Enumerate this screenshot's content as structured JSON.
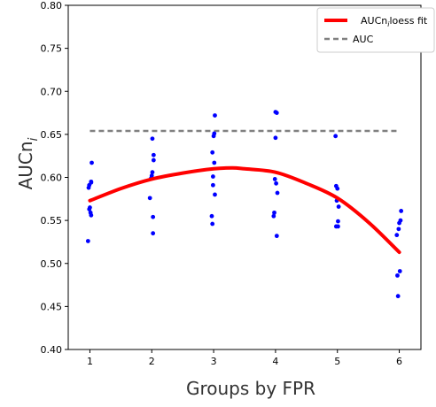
{
  "chart_data": {
    "type": "scatter",
    "xlabel": "Groups by FPR",
    "ylabel_main": "AUCn",
    "ylabel_sub": "i",
    "xlim": [
      0.65,
      6.35
    ],
    "ylim": [
      0.4,
      0.8
    ],
    "x_ticks": [
      1,
      2,
      3,
      4,
      5,
      6
    ],
    "x_tick_labels": [
      "1",
      "2",
      "3",
      "4",
      "5",
      "6"
    ],
    "y_ticks": [
      0.4,
      0.45,
      0.5,
      0.55,
      0.6,
      0.65,
      0.7,
      0.75,
      0.8
    ],
    "y_tick_labels": [
      "0.40",
      "0.45",
      "0.50",
      "0.55",
      "0.60",
      "0.65",
      "0.70",
      "0.75",
      "0.80"
    ],
    "grid": false,
    "legend_position": "top-right",
    "series": [
      {
        "name": "AUCn",
        "name_sub": "i",
        "name_suffix": "loess fit",
        "type": "line",
        "color": "#ff0000",
        "x": [
          1,
          1.5,
          2,
          2.5,
          3,
          3.3,
          3.5,
          4,
          4.5,
          5,
          5.5,
          6
        ],
        "y": [
          0.573,
          0.587,
          0.598,
          0.605,
          0.61,
          0.611,
          0.61,
          0.606,
          0.593,
          0.576,
          0.548,
          0.513
        ]
      },
      {
        "name": "AUC",
        "type": "hline",
        "color": "#808080",
        "y": 0.654,
        "x_range": [
          1,
          6
        ]
      },
      {
        "type": "scatter",
        "color": "#0000ff",
        "points": [
          [
            0.97,
            0.526
          ],
          [
            0.98,
            0.588
          ],
          [
            0.99,
            0.591
          ],
          [
            0.99,
            0.563
          ],
          [
            1.0,
            0.565
          ],
          [
            1.01,
            0.559
          ],
          [
            1.02,
            0.556
          ],
          [
            1.02,
            0.595
          ],
          [
            1.02,
            0.594
          ],
          [
            1.03,
            0.617
          ],
          [
            1.97,
            0.576
          ],
          [
            1.99,
            0.599
          ],
          [
            2.0,
            0.602
          ],
          [
            2.01,
            0.645
          ],
          [
            2.01,
            0.606
          ],
          [
            2.02,
            0.554
          ],
          [
            2.02,
            0.535
          ],
          [
            2.03,
            0.626
          ],
          [
            2.03,
            0.62
          ],
          [
            2.97,
            0.555
          ],
          [
            2.98,
            0.629
          ],
          [
            2.98,
            0.546
          ],
          [
            2.99,
            0.601
          ],
          [
            2.99,
            0.591
          ],
          [
            3.0,
            0.648
          ],
          [
            3.01,
            0.651
          ],
          [
            3.01,
            0.617
          ],
          [
            3.02,
            0.672
          ],
          [
            3.02,
            0.58
          ],
          [
            3.97,
            0.555
          ],
          [
            3.98,
            0.559
          ],
          [
            3.99,
            0.598
          ],
          [
            4.0,
            0.646
          ],
          [
            4.0,
            0.676
          ],
          [
            4.01,
            0.593
          ],
          [
            4.02,
            0.675
          ],
          [
            4.02,
            0.532
          ],
          [
            4.03,
            0.582
          ],
          [
            4.97,
            0.648
          ],
          [
            4.98,
            0.59
          ],
          [
            4.98,
            0.543
          ],
          [
            4.99,
            0.573
          ],
          [
            5.0,
            0.587
          ],
          [
            5.01,
            0.549
          ],
          [
            5.01,
            0.543
          ],
          [
            5.02,
            0.566
          ],
          [
            5.96,
            0.533
          ],
          [
            5.97,
            0.486
          ],
          [
            5.98,
            0.462
          ],
          [
            5.99,
            0.54
          ],
          [
            6.0,
            0.547
          ],
          [
            6.01,
            0.491
          ],
          [
            6.02,
            0.55
          ],
          [
            6.03,
            0.561
          ]
        ]
      }
    ]
  }
}
